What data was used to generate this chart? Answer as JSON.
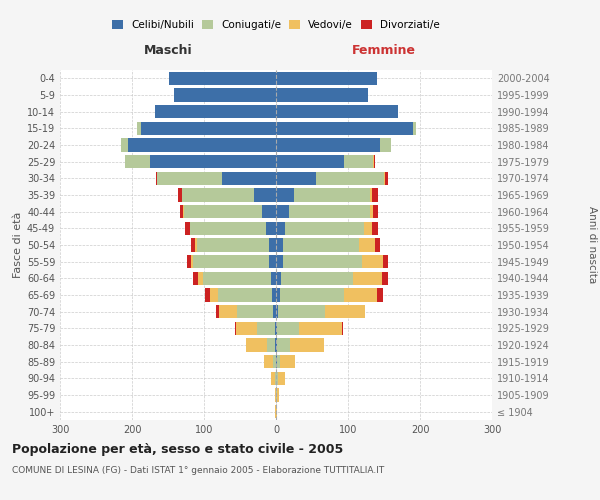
{
  "age_groups": [
    "100+",
    "95-99",
    "90-94",
    "85-89",
    "80-84",
    "75-79",
    "70-74",
    "65-69",
    "60-64",
    "55-59",
    "50-54",
    "45-49",
    "40-44",
    "35-39",
    "30-34",
    "25-29",
    "20-24",
    "15-19",
    "10-14",
    "5-9",
    "0-4"
  ],
  "birth_years": [
    "≤ 1904",
    "1905-1909",
    "1910-1914",
    "1915-1919",
    "1920-1924",
    "1925-1929",
    "1930-1934",
    "1935-1939",
    "1940-1944",
    "1945-1949",
    "1950-1954",
    "1955-1959",
    "1960-1964",
    "1965-1969",
    "1970-1974",
    "1975-1979",
    "1980-1984",
    "1985-1989",
    "1990-1994",
    "1995-1999",
    "2000-2004"
  ],
  "colors": {
    "celibi": "#3d6fa8",
    "coniugati": "#b5c99a",
    "vedovi": "#f0c060",
    "divorziati": "#cc2222"
  },
  "maschi": {
    "celibi": [
      0,
      0,
      0,
      0,
      1,
      2,
      4,
      5,
      7,
      10,
      10,
      14,
      20,
      30,
      75,
      175,
      205,
      188,
      168,
      142,
      148
    ],
    "coniugati": [
      0,
      0,
      2,
      4,
      12,
      25,
      50,
      75,
      95,
      105,
      100,
      105,
      108,
      100,
      90,
      35,
      10,
      5,
      0,
      0,
      0
    ],
    "vedovi": [
      1,
      2,
      5,
      12,
      28,
      28,
      25,
      12,
      6,
      3,
      2,
      1,
      1,
      1,
      0,
      0,
      0,
      0,
      0,
      0,
      0
    ],
    "divorziati": [
      0,
      0,
      0,
      0,
      0,
      2,
      4,
      6,
      7,
      5,
      6,
      6,
      5,
      5,
      2,
      0,
      0,
      0,
      0,
      0,
      0
    ]
  },
  "femmine": {
    "nubili": [
      0,
      0,
      0,
      1,
      1,
      2,
      3,
      5,
      7,
      10,
      10,
      12,
      18,
      25,
      55,
      95,
      145,
      190,
      170,
      128,
      140
    ],
    "coniugate": [
      0,
      1,
      3,
      5,
      18,
      30,
      65,
      90,
      100,
      110,
      105,
      110,
      112,
      105,
      95,
      40,
      15,
      5,
      0,
      0,
      0
    ],
    "vedove": [
      1,
      3,
      10,
      20,
      48,
      60,
      55,
      45,
      40,
      28,
      22,
      12,
      5,
      3,
      2,
      1,
      0,
      0,
      0,
      0,
      0
    ],
    "divorziate": [
      0,
      0,
      0,
      0,
      0,
      1,
      1,
      8,
      8,
      8,
      8,
      8,
      7,
      8,
      3,
      1,
      0,
      0,
      0,
      0,
      0
    ]
  },
  "xlim": 300,
  "title": "Popolazione per età, sesso e stato civile - 2005",
  "subtitle": "COMUNE DI LESINA (FG) - Dati ISTAT 1° gennaio 2005 - Elaborazione TUTTITALIA.IT",
  "xlabel_left": "Maschi",
  "xlabel_right": "Femmine",
  "ylabel_left": "Fasce di età",
  "ylabel_right": "Anni di nascita",
  "background_color": "#f5f5f5",
  "plot_bg": "#ffffff",
  "legend_labels": [
    "Celibi/Nubili",
    "Coniugati/e",
    "Vedovi/e",
    "Divorziati/e"
  ]
}
